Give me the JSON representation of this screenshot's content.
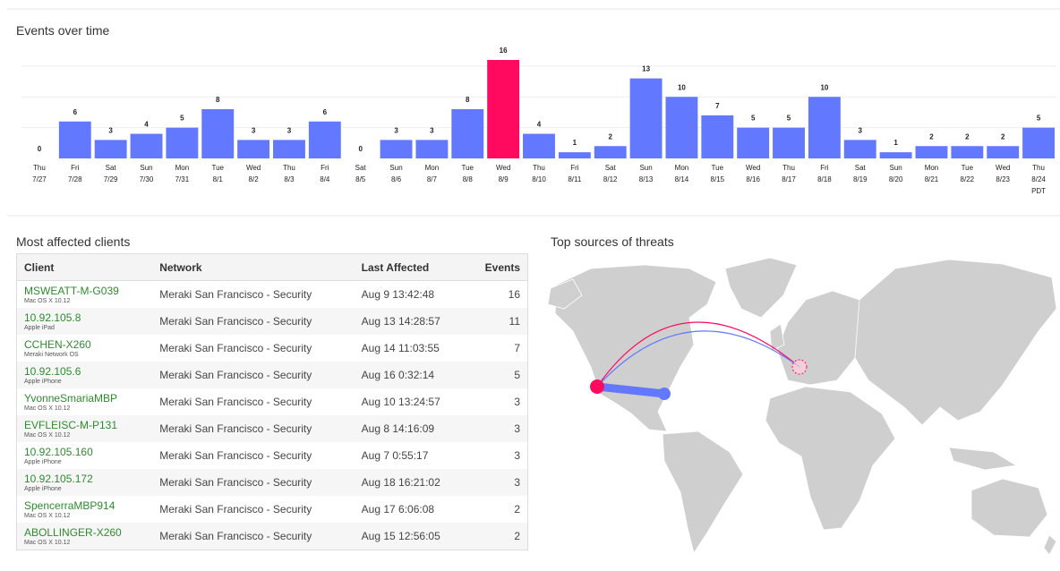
{
  "chart_data": {
    "type": "bar",
    "title": "Events over time",
    "categories": [
      [
        "Thu",
        "7/27"
      ],
      [
        "Fri",
        "7/28"
      ],
      [
        "Sat",
        "7/29"
      ],
      [
        "Sun",
        "7/30"
      ],
      [
        "Mon",
        "7/31"
      ],
      [
        "Tue",
        "8/1"
      ],
      [
        "Wed",
        "8/2"
      ],
      [
        "Thu",
        "8/3"
      ],
      [
        "Fri",
        "8/4"
      ],
      [
        "Sat",
        "8/5"
      ],
      [
        "Sun",
        "8/6"
      ],
      [
        "Mon",
        "8/7"
      ],
      [
        "Tue",
        "8/8"
      ],
      [
        "Wed",
        "8/9"
      ],
      [
        "Thu",
        "8/10"
      ],
      [
        "Fri",
        "8/11"
      ],
      [
        "Sat",
        "8/12"
      ],
      [
        "Sun",
        "8/13"
      ],
      [
        "Mon",
        "8/14"
      ],
      [
        "Tue",
        "8/15"
      ],
      [
        "Wed",
        "8/16"
      ],
      [
        "Thu",
        "8/17"
      ],
      [
        "Fri",
        "8/18"
      ],
      [
        "Sat",
        "8/19"
      ],
      [
        "Sun",
        "8/20"
      ],
      [
        "Mon",
        "8/21"
      ],
      [
        "Tue",
        "8/22"
      ],
      [
        "Wed",
        "8/23"
      ],
      [
        "Thu",
        "8/24",
        "PDT"
      ]
    ],
    "values": [
      0,
      6,
      3,
      4,
      5,
      8,
      3,
      3,
      6,
      0,
      3,
      3,
      8,
      16,
      4,
      1,
      2,
      13,
      10,
      7,
      5,
      5,
      10,
      3,
      1,
      2,
      2,
      2,
      5
    ],
    "colors": [
      "#6178ff",
      "#6178ff",
      "#6178ff",
      "#6178ff",
      "#6178ff",
      "#6178ff",
      "#6178ff",
      "#6178ff",
      "#6178ff",
      "#6178ff",
      "#6178ff",
      "#6178ff",
      "#6178ff",
      "#ff0a5e",
      "#6178ff",
      "#6178ff",
      "#6178ff",
      "#6178ff",
      "#6178ff",
      "#6178ff",
      "#6178ff",
      "#6178ff",
      "#6178ff",
      "#6178ff",
      "#6178ff",
      "#6178ff",
      "#6178ff",
      "#6178ff",
      "#6178ff"
    ],
    "ylim": [
      0,
      16
    ],
    "gridlines": [
      5,
      10,
      15
    ]
  },
  "clients": {
    "title": "Most affected clients",
    "columns": [
      "Client",
      "Network",
      "Last Affected",
      "Events"
    ],
    "rows": [
      {
        "client": "MSWEATT-M-G039",
        "os": "Mac OS X 10.12",
        "network": "Meraki San Francisco - Security",
        "last_affected": "Aug 9 13:42:48",
        "events": 16
      },
      {
        "client": "10.92.105.8",
        "os": "Apple iPad",
        "network": "Meraki San Francisco - Security",
        "last_affected": "Aug 13 14:28:57",
        "events": 11
      },
      {
        "client": "CCHEN-X260",
        "os": "Meraki Network OS",
        "network": "Meraki San Francisco - Security",
        "last_affected": "Aug 14 11:03:55",
        "events": 7
      },
      {
        "client": "10.92.105.6",
        "os": "Apple iPhone",
        "network": "Meraki San Francisco - Security",
        "last_affected": "Aug 16 0:32:14",
        "events": 5
      },
      {
        "client": "YvonneSmariaMBP",
        "os": "Mac OS X 10.12",
        "network": "Meraki San Francisco - Security",
        "last_affected": "Aug 10 13:24:57",
        "events": 3
      },
      {
        "client": "EVFLEISC-M-P131",
        "os": "Mac OS X 10.12",
        "network": "Meraki San Francisco - Security",
        "last_affected": "Aug 8 14:16:09",
        "events": 3
      },
      {
        "client": "10.92.105.160",
        "os": "Apple iPhone",
        "network": "Meraki San Francisco - Security",
        "last_affected": "Aug 7 0:55:17",
        "events": 3
      },
      {
        "client": "10.92.105.172",
        "os": "Apple iPhone",
        "network": "Meraki San Francisco - Security",
        "last_affected": "Aug 18 16:21:02",
        "events": 3
      },
      {
        "client": "SpencerraMBP914",
        "os": "Mac OS X 10.12",
        "network": "Meraki San Francisco - Security",
        "last_affected": "Aug 17 6:06:08",
        "events": 2
      },
      {
        "client": "ABOLLINGER-X260",
        "os": "Mac OS X 10.12",
        "network": "Meraki San Francisco - Security",
        "last_affected": "Aug 15 12:56:05",
        "events": 2
      }
    ]
  },
  "map": {
    "title": "Top sources of threats"
  }
}
